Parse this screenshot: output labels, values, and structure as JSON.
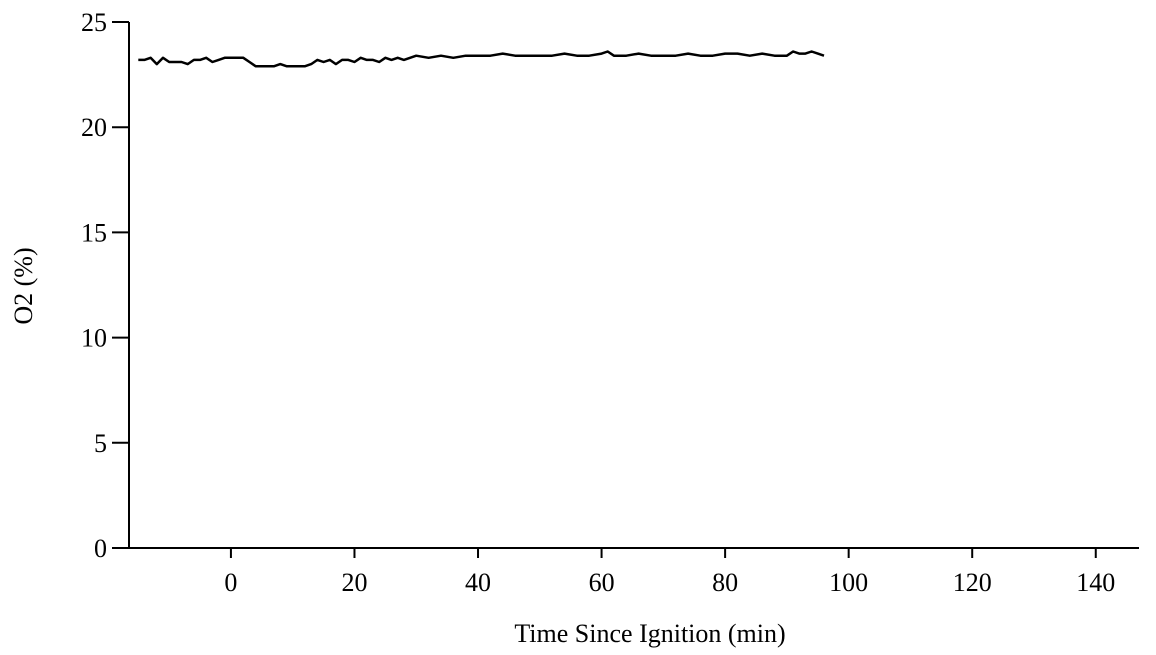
{
  "chart_data": {
    "type": "line",
    "title": "",
    "xlabel": "Time Since Ignition (min)",
    "ylabel": "O2 (%)",
    "xlim": [
      -16.5,
      147
    ],
    "ylim": [
      0,
      25
    ],
    "xticks": [
      0,
      20,
      40,
      60,
      80,
      100,
      120,
      140
    ],
    "xtick_labels": [
      "0",
      "20",
      "40",
      "60",
      "80",
      "100",
      "120",
      "140"
    ],
    "yticks": [
      0,
      5,
      10,
      15,
      20,
      25
    ],
    "ytick_labels": [
      "0",
      "5",
      "10",
      "15",
      "20",
      "25"
    ],
    "grid": false,
    "legend": "none",
    "colors": {
      "series": "#000000",
      "axes": "#000000"
    },
    "series": [
      {
        "x": [
          -15,
          -14,
          -13,
          -12,
          -11,
          -10,
          -9,
          -8,
          -7,
          -6,
          -5,
          -4,
          -3,
          -2,
          -1,
          0,
          1,
          2,
          3,
          4,
          5,
          6,
          7,
          8,
          9,
          10,
          11,
          12,
          13,
          14,
          15,
          16,
          17,
          18,
          19,
          20,
          21,
          22,
          23,
          24,
          25,
          26,
          27,
          28,
          29,
          30,
          32,
          34,
          36,
          38,
          40,
          42,
          44,
          46,
          48,
          50,
          52,
          54,
          56,
          58,
          60,
          61,
          62,
          64,
          66,
          68,
          70,
          72,
          74,
          76,
          78,
          80,
          82,
          84,
          86,
          88,
          90,
          91,
          92,
          93,
          94,
          95,
          96
        ],
        "y": [
          23.2,
          23.2,
          23.3,
          23.0,
          23.3,
          23.1,
          23.1,
          23.1,
          23.0,
          23.2,
          23.2,
          23.3,
          23.1,
          23.2,
          23.3,
          23.3,
          23.3,
          23.3,
          23.1,
          22.9,
          22.9,
          22.9,
          22.9,
          23.0,
          22.9,
          22.9,
          22.9,
          22.9,
          23.0,
          23.2,
          23.1,
          23.2,
          23.0,
          23.2,
          23.2,
          23.1,
          23.3,
          23.2,
          23.2,
          23.1,
          23.3,
          23.2,
          23.3,
          23.2,
          23.3,
          23.4,
          23.3,
          23.4,
          23.3,
          23.4,
          23.4,
          23.4,
          23.5,
          23.4,
          23.4,
          23.4,
          23.4,
          23.5,
          23.4,
          23.4,
          23.5,
          23.6,
          23.4,
          23.4,
          23.5,
          23.4,
          23.4,
          23.4,
          23.5,
          23.4,
          23.4,
          23.5,
          23.5,
          23.4,
          23.5,
          23.4,
          23.4,
          23.6,
          23.5,
          23.5,
          23.6,
          23.5,
          23.4
        ]
      }
    ]
  }
}
